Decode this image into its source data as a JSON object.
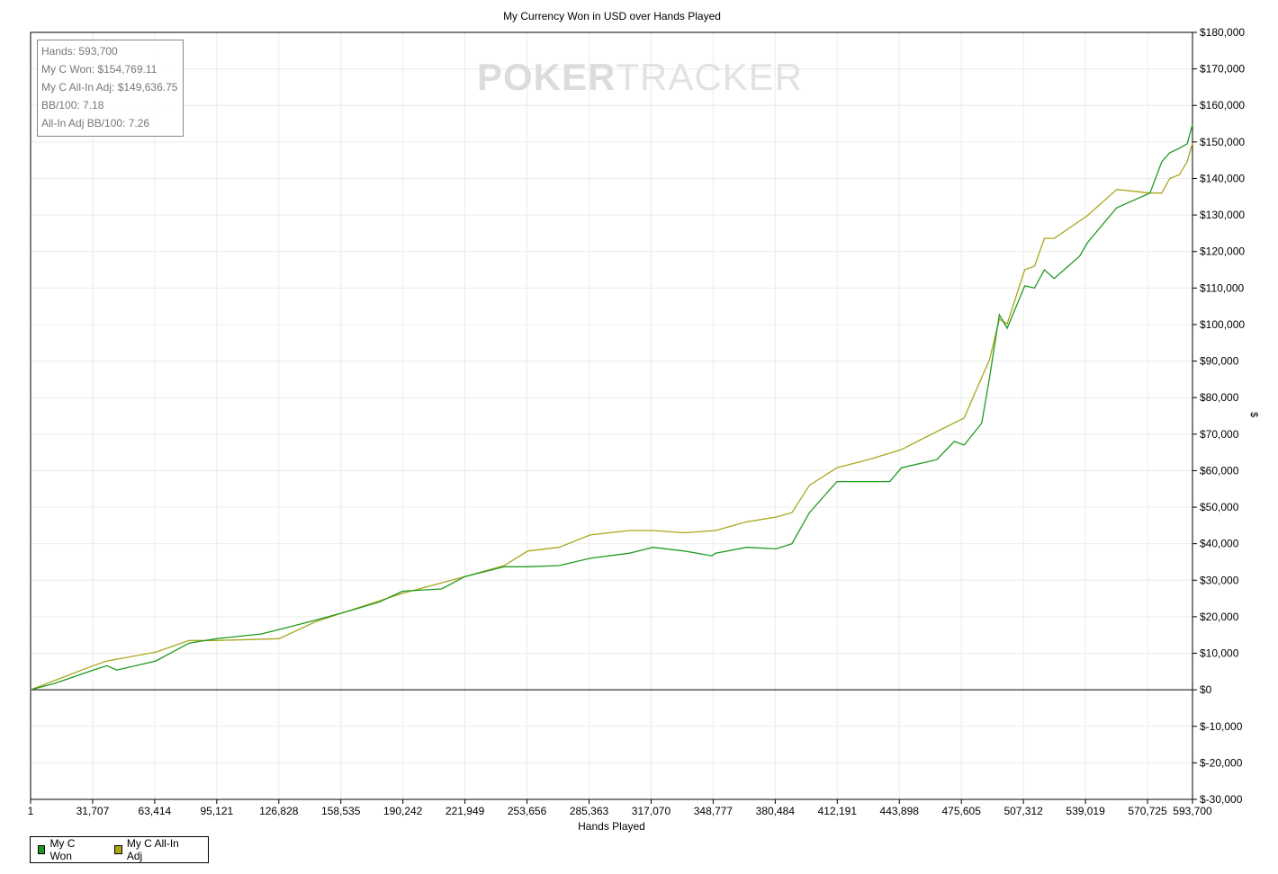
{
  "chart_data": {
    "type": "line",
    "title": "My Currency Won in USD over Hands Played",
    "xlabel": "Hands Played",
    "ylabel": "$",
    "xlim": [
      1,
      593700
    ],
    "ylim": [
      -30000,
      180000
    ],
    "grid": true,
    "legend_position": "bottom-left",
    "x_ticks": [
      "1",
      "31,707",
      "63,414",
      "95,121",
      "126,828",
      "158,535",
      "190,242",
      "221,949",
      "253,656",
      "285,363",
      "317,070",
      "348,777",
      "380,484",
      "412,191",
      "443,898",
      "475,605",
      "507,312",
      "539,019",
      "570,725",
      "593,700"
    ],
    "x_tick_values": [
      1,
      31707,
      63414,
      95121,
      126828,
      158535,
      190242,
      221949,
      253656,
      285363,
      317070,
      348777,
      380484,
      412191,
      443898,
      475605,
      507312,
      539019,
      570725,
      593700
    ],
    "y_ticks": [
      "$180,000",
      "$170,000",
      "$160,000",
      "$150,000",
      "$140,000",
      "$130,000",
      "$120,000",
      "$110,000",
      "$100,000",
      "$90,000",
      "$80,000",
      "$70,000",
      "$60,000",
      "$50,000",
      "$40,000",
      "$30,000",
      "$20,000",
      "$10,000",
      "$0",
      "$-10,000",
      "$-20,000",
      "$-30,000"
    ],
    "y_tick_values": [
      180000,
      170000,
      160000,
      150000,
      140000,
      130000,
      120000,
      110000,
      100000,
      90000,
      80000,
      70000,
      60000,
      50000,
      40000,
      30000,
      20000,
      10000,
      0,
      -10000,
      -20000,
      -30000
    ],
    "series": [
      {
        "name": "My C Won",
        "color": "#1f9a1f",
        "points": [
          [
            1,
            0
          ],
          [
            12000,
            1700
          ],
          [
            32000,
            5400
          ],
          [
            39000,
            6600
          ],
          [
            44000,
            5400
          ],
          [
            64000,
            7900
          ],
          [
            81000,
            12800
          ],
          [
            95000,
            14000
          ],
          [
            118000,
            15300
          ],
          [
            127000,
            16500
          ],
          [
            145000,
            19000
          ],
          [
            159000,
            21000
          ],
          [
            178000,
            24000
          ],
          [
            190000,
            27000
          ],
          [
            210000,
            27600
          ],
          [
            222000,
            31000
          ],
          [
            242000,
            33700
          ],
          [
            254000,
            33700
          ],
          [
            270000,
            34000
          ],
          [
            286000,
            36000
          ],
          [
            306000,
            37400
          ],
          [
            318000,
            39000
          ],
          [
            334000,
            38000
          ],
          [
            348000,
            36700
          ],
          [
            350000,
            37400
          ],
          [
            366000,
            39000
          ],
          [
            381000,
            38600
          ],
          [
            389000,
            40000
          ],
          [
            398000,
            48500
          ],
          [
            412000,
            57000
          ],
          [
            430000,
            57000
          ],
          [
            439000,
            57000
          ],
          [
            445000,
            60800
          ],
          [
            463000,
            63000
          ],
          [
            472000,
            68000
          ],
          [
            477000,
            67000
          ],
          [
            486000,
            73000
          ],
          [
            490000,
            85500
          ],
          [
            495000,
            102700
          ],
          [
            499000,
            99000
          ],
          [
            508000,
            110600
          ],
          [
            513000,
            110000
          ],
          [
            518000,
            115000
          ],
          [
            523000,
            112600
          ],
          [
            536000,
            118700
          ],
          [
            540000,
            122400
          ],
          [
            555000,
            132000
          ],
          [
            572000,
            136000
          ],
          [
            578000,
            144600
          ],
          [
            582000,
            147000
          ],
          [
            587000,
            148300
          ],
          [
            591000,
            149500
          ],
          [
            593700,
            154769.11
          ]
        ]
      },
      {
        "name": "My C All-In Adj",
        "color": "#a9a61e",
        "points": [
          [
            1,
            0
          ],
          [
            12000,
            2500
          ],
          [
            32000,
            6600
          ],
          [
            39000,
            7900
          ],
          [
            64000,
            10300
          ],
          [
            81000,
            13500
          ],
          [
            95000,
            13500
          ],
          [
            127000,
            14000
          ],
          [
            145000,
            18500
          ],
          [
            159000,
            21000
          ],
          [
            190000,
            26400
          ],
          [
            222000,
            31000
          ],
          [
            242000,
            34000
          ],
          [
            254000,
            38000
          ],
          [
            270000,
            39000
          ],
          [
            286000,
            42400
          ],
          [
            306000,
            43600
          ],
          [
            318000,
            43600
          ],
          [
            334000,
            43000
          ],
          [
            350000,
            43600
          ],
          [
            366000,
            46000
          ],
          [
            381000,
            47300
          ],
          [
            389000,
            48500
          ],
          [
            398000,
            56000
          ],
          [
            412000,
            60800
          ],
          [
            430000,
            63300
          ],
          [
            445000,
            65800
          ],
          [
            463000,
            70700
          ],
          [
            477000,
            74400
          ],
          [
            486000,
            85500
          ],
          [
            490000,
            90400
          ],
          [
            495000,
            101500
          ],
          [
            499000,
            100200
          ],
          [
            508000,
            115000
          ],
          [
            513000,
            116000
          ],
          [
            518000,
            123600
          ],
          [
            523000,
            123600
          ],
          [
            540000,
            129800
          ],
          [
            555000,
            137000
          ],
          [
            572000,
            136000
          ],
          [
            578000,
            136000
          ],
          [
            582000,
            140000
          ],
          [
            587000,
            141000
          ],
          [
            591000,
            144600
          ],
          [
            593700,
            149636.75
          ]
        ]
      }
    ]
  },
  "info_box": {
    "hands": "Hands: 593,700",
    "won": "My C Won: $154,769.11",
    "allin": "My C All-In Adj: $149,636.75",
    "bb100": "BB/100: 7.18",
    "allin_bb100": "All-In Adj BB/100: 7.26"
  },
  "watermark": {
    "bold": "POKER",
    "light": "TRACKER"
  }
}
